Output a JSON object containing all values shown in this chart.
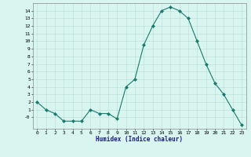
{
  "x": [
    0,
    1,
    2,
    3,
    4,
    5,
    6,
    7,
    8,
    9,
    10,
    11,
    12,
    13,
    14,
    15,
    16,
    17,
    18,
    19,
    20,
    21,
    22,
    23
  ],
  "y": [
    2,
    1,
    0.5,
    -0.5,
    -0.5,
    -0.5,
    1,
    0.5,
    0.5,
    -0.2,
    4,
    5,
    9.5,
    12,
    14,
    14.5,
    14,
    13,
    10,
    7,
    4.5,
    3,
    1,
    -1
  ],
  "line_color": "#1a7a6e",
  "marker": "D",
  "marker_size": 2,
  "bg_color": "#d8f5f0",
  "grid_color": "#b8ddd8",
  "xlabel": "Humidex (Indice chaleur)",
  "xlim": [
    -0.5,
    23.5
  ],
  "ylim": [
    -1.5,
    15
  ],
  "yticks": [
    0,
    1,
    2,
    3,
    4,
    5,
    6,
    7,
    8,
    9,
    10,
    11,
    12,
    13,
    14
  ],
  "xticks": [
    0,
    1,
    2,
    3,
    4,
    5,
    6,
    7,
    8,
    9,
    10,
    11,
    12,
    13,
    14,
    15,
    16,
    17,
    18,
    19,
    20,
    21,
    22,
    23
  ],
  "ytick_labels": [
    "-0",
    "1",
    "2",
    "3",
    "4",
    "5",
    "6",
    "7",
    "8",
    "9",
    "10",
    "11",
    "12",
    "13",
    "14"
  ]
}
